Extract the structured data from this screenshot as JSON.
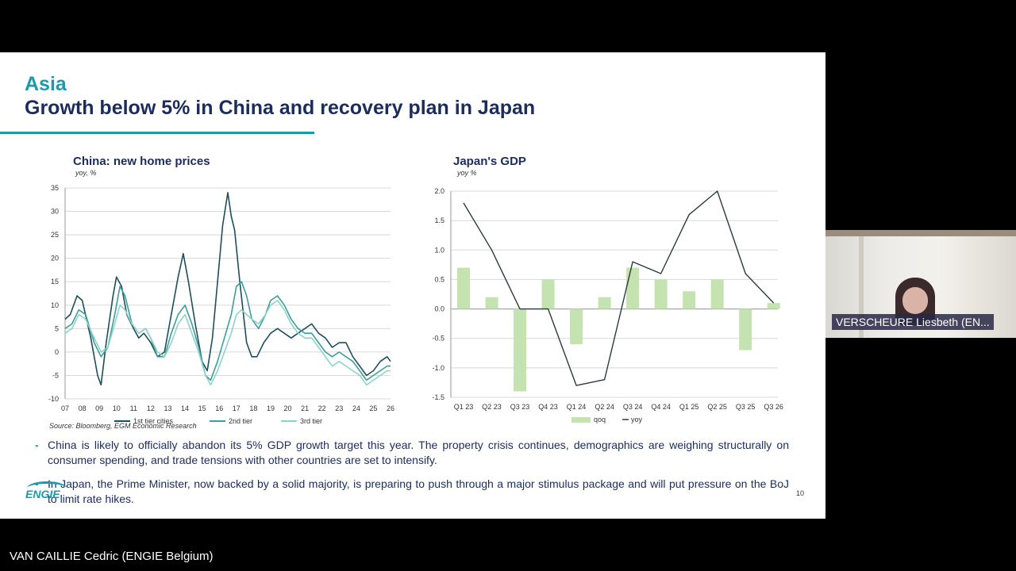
{
  "slide": {
    "section_title": "Asia",
    "main_title": "Growth below 5% in China and recovery plan in Japan",
    "source": "Source: Bloomberg, EGM Economic Research",
    "bullets": [
      "China is likely to officially abandon its 5% GDP growth target this year. The property crisis continues, demographics are weighing structurally on consumer spending, and trade tensions with other countries are set to intensify.",
      "In Japan, the Prime Minister, now backed by a solid majority, is preparing to push through a major stimulus package and will put pressure on the BoJ to limit rate hikes."
    ],
    "page_number": "10",
    "logo_text": "ENGIE"
  },
  "participants": {
    "video_name": "VERSCHEURE Liesbeth (EN...",
    "presenter_name": "VAN CAILLIE Cedric (ENGIE Belgium)"
  },
  "colors": {
    "title_blue": "#1c2c5b",
    "accent_teal": "#1b9aaa",
    "series_1st": "#1f4e5a",
    "series_2nd": "#3d9e98",
    "series_3rd": "#8fd3c8",
    "bar_green": "#c4e3b0",
    "line_dark": "#2a3b3e"
  },
  "chart_data": [
    {
      "type": "line",
      "title": "China: new home prices",
      "ylabel": "yoy, %",
      "ylim": [
        -10,
        35
      ],
      "yticks": [
        35,
        30,
        25,
        20,
        15,
        10,
        5,
        0,
        -5,
        -10
      ],
      "xlim": [
        2007,
        2026
      ],
      "xtick_values": [
        2007,
        2008,
        2009,
        2010,
        2011,
        2012,
        2013,
        2014,
        2015,
        2016,
        2017,
        2018,
        2019,
        2020,
        2021,
        2022,
        2023,
        2024,
        2025,
        2026
      ],
      "xtick_labels": [
        "07",
        "08",
        "09",
        "10",
        "11",
        "12",
        "13",
        "14",
        "15",
        "16",
        "17",
        "18",
        "19",
        "20",
        "21",
        "22",
        "23",
        "24",
        "25",
        "26"
      ],
      "grid": true,
      "legend_position": "bottom",
      "series": [
        {
          "name": "1st tier cities",
          "color": "#1f4e5a",
          "points": [
            [
              2007,
              7
            ],
            [
              2007.3,
              8
            ],
            [
              2007.7,
              12
            ],
            [
              2008,
              11
            ],
            [
              2008.5,
              3
            ],
            [
              2008.9,
              -5
            ],
            [
              2009.1,
              -7
            ],
            [
              2009.4,
              2
            ],
            [
              2009.8,
              12
            ],
            [
              2010,
              16
            ],
            [
              2010.3,
              14
            ],
            [
              2010.6,
              8
            ],
            [
              2011,
              5
            ],
            [
              2011.3,
              3
            ],
            [
              2011.6,
              4
            ],
            [
              2012,
              2
            ],
            [
              2012.4,
              -1
            ],
            [
              2012.8,
              0
            ],
            [
              2013.2,
              8
            ],
            [
              2013.6,
              16
            ],
            [
              2013.9,
              21
            ],
            [
              2014.2,
              15
            ],
            [
              2014.6,
              6
            ],
            [
              2015,
              -2
            ],
            [
              2015.3,
              -4
            ],
            [
              2015.6,
              3
            ],
            [
              2015.9,
              15
            ],
            [
              2016.2,
              27
            ],
            [
              2016.5,
              34
            ],
            [
              2016.7,
              29
            ],
            [
              2016.9,
              26
            ],
            [
              2017.2,
              15
            ],
            [
              2017.6,
              2
            ],
            [
              2017.9,
              -1
            ],
            [
              2018.2,
              -1
            ],
            [
              2018.6,
              2
            ],
            [
              2019,
              4
            ],
            [
              2019.4,
              5
            ],
            [
              2019.8,
              4
            ],
            [
              2020.2,
              3
            ],
            [
              2020.6,
              4
            ],
            [
              2021,
              5
            ],
            [
              2021.4,
              6
            ],
            [
              2021.8,
              4
            ],
            [
              2022.2,
              3
            ],
            [
              2022.6,
              1
            ],
            [
              2023,
              2
            ],
            [
              2023.4,
              2
            ],
            [
              2023.8,
              -1
            ],
            [
              2024.2,
              -3
            ],
            [
              2024.6,
              -5
            ],
            [
              2025,
              -4
            ],
            [
              2025.4,
              -2
            ],
            [
              2025.8,
              -1
            ],
            [
              2026,
              -2
            ]
          ]
        },
        {
          "name": "2nd tier",
          "color": "#3d9e98",
          "points": [
            [
              2007,
              5
            ],
            [
              2007.4,
              6
            ],
            [
              2007.8,
              9
            ],
            [
              2008.2,
              8
            ],
            [
              2008.7,
              2
            ],
            [
              2009.1,
              -1
            ],
            [
              2009.5,
              1
            ],
            [
              2009.9,
              8
            ],
            [
              2010.2,
              14
            ],
            [
              2010.5,
              12
            ],
            [
              2010.9,
              6
            ],
            [
              2011.3,
              4
            ],
            [
              2011.7,
              5
            ],
            [
              2012,
              3
            ],
            [
              2012.4,
              -1
            ],
            [
              2012.8,
              -1
            ],
            [
              2013.2,
              4
            ],
            [
              2013.6,
              8
            ],
            [
              2014,
              10
            ],
            [
              2014.4,
              6
            ],
            [
              2014.8,
              1
            ],
            [
              2015.2,
              -5
            ],
            [
              2015.5,
              -6
            ],
            [
              2015.9,
              -2
            ],
            [
              2016.3,
              3
            ],
            [
              2016.7,
              8
            ],
            [
              2017,
              14
            ],
            [
              2017.3,
              15
            ],
            [
              2017.6,
              12
            ],
            [
              2017.9,
              7
            ],
            [
              2018.3,
              5
            ],
            [
              2018.7,
              8
            ],
            [
              2019,
              11
            ],
            [
              2019.4,
              12
            ],
            [
              2019.8,
              10
            ],
            [
              2020.2,
              7
            ],
            [
              2020.6,
              5
            ],
            [
              2021,
              4
            ],
            [
              2021.4,
              4
            ],
            [
              2021.8,
              2
            ],
            [
              2022.2,
              0
            ],
            [
              2022.6,
              -1
            ],
            [
              2023,
              0
            ],
            [
              2023.4,
              -1
            ],
            [
              2023.8,
              -2
            ],
            [
              2024.2,
              -4
            ],
            [
              2024.6,
              -6
            ],
            [
              2025,
              -5
            ],
            [
              2025.4,
              -4
            ],
            [
              2025.8,
              -3
            ],
            [
              2026,
              -3
            ]
          ]
        },
        {
          "name": "3rd tier",
          "color": "#8fd3c8",
          "points": [
            [
              2007,
              4
            ],
            [
              2007.4,
              5
            ],
            [
              2007.8,
              8
            ],
            [
              2008.2,
              7
            ],
            [
              2008.7,
              3
            ],
            [
              2009.1,
              0
            ],
            [
              2009.5,
              1
            ],
            [
              2009.9,
              6
            ],
            [
              2010.2,
              10
            ],
            [
              2010.5,
              9
            ],
            [
              2010.9,
              6
            ],
            [
              2011.3,
              4
            ],
            [
              2011.7,
              5
            ],
            [
              2012,
              3
            ],
            [
              2012.4,
              0
            ],
            [
              2012.8,
              -1
            ],
            [
              2013.2,
              2
            ],
            [
              2013.6,
              6
            ],
            [
              2014,
              8
            ],
            [
              2014.4,
              4
            ],
            [
              2014.8,
              0
            ],
            [
              2015.2,
              -5
            ],
            [
              2015.5,
              -7
            ],
            [
              2015.9,
              -4
            ],
            [
              2016.3,
              0
            ],
            [
              2016.7,
              4
            ],
            [
              2017,
              8
            ],
            [
              2017.3,
              9
            ],
            [
              2017.6,
              8
            ],
            [
              2017.9,
              7
            ],
            [
              2018.3,
              6
            ],
            [
              2018.7,
              8
            ],
            [
              2019,
              10
            ],
            [
              2019.4,
              11
            ],
            [
              2019.8,
              9
            ],
            [
              2020.2,
              6
            ],
            [
              2020.6,
              4
            ],
            [
              2021,
              3
            ],
            [
              2021.4,
              3
            ],
            [
              2021.8,
              1
            ],
            [
              2022.2,
              -1
            ],
            [
              2022.6,
              -3
            ],
            [
              2023,
              -2
            ],
            [
              2023.4,
              -3
            ],
            [
              2023.8,
              -4
            ],
            [
              2024.2,
              -5
            ],
            [
              2024.6,
              -7
            ],
            [
              2025,
              -6
            ],
            [
              2025.4,
              -5
            ],
            [
              2025.8,
              -4
            ],
            [
              2026,
              -4
            ]
          ]
        }
      ]
    },
    {
      "type": "bar+line",
      "title": "Japan's GDP",
      "ylabel": "yoy %",
      "ylim": [
        -1.5,
        2.0
      ],
      "yticks": [
        2.0,
        1.5,
        1.0,
        0.5,
        0.0,
        -0.5,
        -1.0,
        -1.5
      ],
      "ytick_labels": [
        "2.0",
        "1.5",
        "1.0",
        "0.5",
        "0.0",
        "-0.5",
        "-1.0",
        "-1.5"
      ],
      "categories": [
        "Q1 23",
        "Q2 23",
        "Q3 23",
        "Q4 23",
        "Q1 24",
        "Q2 24",
        "Q3 24",
        "Q4 24",
        "Q1 25",
        "Q2 25",
        "Q3 25",
        "Q3 26"
      ],
      "grid": true,
      "legend_position": "bottom",
      "series": [
        {
          "name": "qoq",
          "kind": "bar",
          "color": "#c4e3b0",
          "values": [
            0.7,
            0.2,
            -1.4,
            0.5,
            -0.6,
            0.2,
            0.7,
            0.5,
            0.3,
            0.5,
            -0.7,
            0.1
          ]
        },
        {
          "name": "yoy",
          "kind": "line",
          "color": "#2a3b3e",
          "values": [
            1.8,
            1.0,
            0.0,
            0.0,
            -1.3,
            -1.2,
            0.8,
            0.6,
            1.6,
            2.0,
            0.6,
            0.1
          ]
        }
      ]
    }
  ]
}
